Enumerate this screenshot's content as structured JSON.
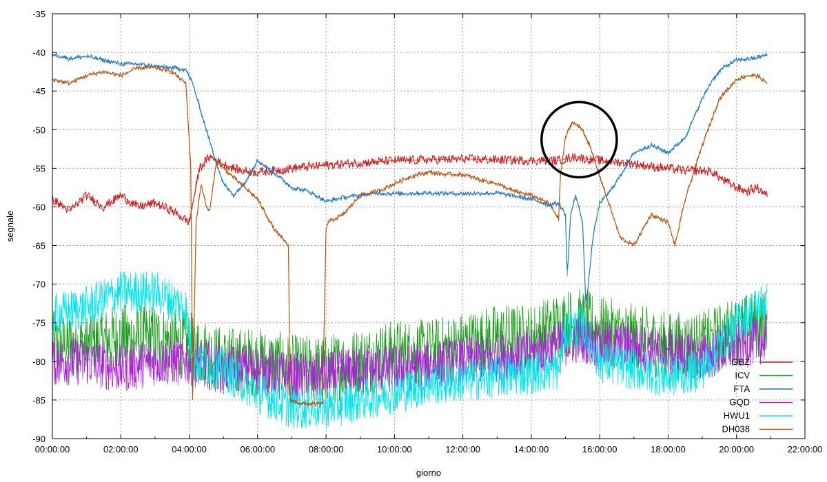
{
  "chart_data": {
    "type": "line",
    "title": "",
    "xlabel": "giorno",
    "ylabel": "segnale",
    "ylim": [
      -90,
      -35
    ],
    "xlim_hours": [
      0,
      22
    ],
    "grid": true,
    "legend_placement": "bottom-right",
    "x_tick_labels": [
      "00:00:00",
      "02:00:00",
      "04:00:00",
      "06:00:00",
      "08:00:00",
      "10:00:00",
      "12:00:00",
      "14:00:00",
      "16:00:00",
      "18:00:00",
      "20:00:00",
      "22:00:00"
    ],
    "y_tick_labels": [
      "-35",
      "-40",
      "-45",
      "-50",
      "-55",
      "-60",
      "-65",
      "-70",
      "-75",
      "-80",
      "-85",
      "-90"
    ],
    "annotation": {
      "type": "circle",
      "center_hours": 15.4,
      "center_value": -51.3,
      "radius_hours": 1.1
    },
    "series": [
      {
        "name": "GBZ",
        "color": "#cc1f1f",
        "x": [
          0,
          0.5,
          1,
          1.5,
          2,
          2.5,
          3,
          3.5,
          4,
          4.3,
          4.6,
          5,
          5.5,
          6,
          6.5,
          7,
          8,
          9,
          10,
          11,
          12,
          13,
          14,
          14.8,
          15.0,
          15.3,
          15.6,
          16,
          16.5,
          17,
          17.5,
          18,
          18.5,
          19,
          19.3,
          19.6,
          20,
          20.3,
          20.6,
          20.9
        ],
        "values": [
          -59,
          -60.5,
          -58.5,
          -60,
          -58.5,
          -60,
          -59.5,
          -60.5,
          -62,
          -55,
          -53.5,
          -54.5,
          -55.3,
          -55.5,
          -55.3,
          -55,
          -54.6,
          -54.3,
          -54,
          -53.9,
          -53.8,
          -53.9,
          -54,
          -54,
          -53.8,
          -53.5,
          -53.8,
          -54,
          -54.2,
          -54.4,
          -54.8,
          -55,
          -55.3,
          -55.3,
          -55.5,
          -56.5,
          -57.5,
          -58,
          -57.5,
          -58.5
        ]
      },
      {
        "name": "ICV",
        "color": "#1a9e1a",
        "x": [
          0,
          1,
          2,
          3,
          4,
          5,
          6,
          7,
          8,
          9,
          10,
          11,
          12,
          13,
          14,
          15,
          15.5,
          16,
          17,
          18,
          19,
          20,
          20.9
        ],
        "values": [
          -78,
          -78,
          -77,
          -77,
          -78,
          -80,
          -80,
          -81,
          -81,
          -80,
          -79,
          -79,
          -78,
          -77,
          -77,
          -75,
          -75,
          -76,
          -77,
          -78,
          -78,
          -76,
          -75
        ]
      },
      {
        "name": "FTA",
        "color": "#1f77c4",
        "x": [
          0,
          0.5,
          1,
          1.5,
          2,
          2.5,
          3,
          3.5,
          3.9,
          4.1,
          4.3,
          4.5,
          4.7,
          5,
          5.3,
          5.6,
          6,
          6.3,
          6.6,
          7,
          7.5,
          8,
          8.5,
          9,
          9.5,
          10,
          11,
          12,
          13,
          14,
          14.5,
          14.8,
          15,
          15.05,
          15.15,
          15.3,
          15.5,
          15.6,
          15.8,
          16,
          16.3,
          16.6,
          17,
          17.5,
          18,
          18.5,
          19,
          19.3,
          19.6,
          20,
          20.5,
          20.9
        ],
        "values": [
          -40.2,
          -40.8,
          -40.5,
          -41,
          -41.5,
          -41.5,
          -41.8,
          -42,
          -42.2,
          -44,
          -47,
          -50,
          -53,
          -57,
          -58.5,
          -57,
          -54,
          -55,
          -56,
          -57.5,
          -58,
          -59.3,
          -58.8,
          -58.5,
          -58.2,
          -58.3,
          -58.2,
          -58.3,
          -58.2,
          -59,
          -59.7,
          -59.5,
          -61,
          -69,
          -61,
          -58.5,
          -62,
          -73,
          -64,
          -59.5,
          -58,
          -56,
          -53,
          -52,
          -53,
          -51,
          -46,
          -43.5,
          -42,
          -41,
          -40.8,
          -40.3
        ]
      },
      {
        "name": "GQD",
        "color": "#b01fe0",
        "x": [
          0,
          1,
          2,
          3,
          4,
          5,
          6,
          7,
          8,
          9,
          10,
          11,
          12,
          13,
          14,
          15,
          15.5,
          16,
          17,
          18,
          19,
          20,
          20.9
        ],
        "values": [
          -80,
          -80,
          -81,
          -80,
          -80,
          -81,
          -81,
          -82,
          -82,
          -81,
          -81,
          -80.5,
          -80,
          -79.5,
          -79,
          -77.5,
          -77,
          -78,
          -78,
          -79,
          -79.5,
          -78,
          -77
        ]
      },
      {
        "name": "HWU1",
        "color": "#00e6e6",
        "x": [
          0,
          1,
          2,
          3,
          3.9,
          4.1,
          5,
          6,
          7,
          8,
          9,
          10,
          11,
          12,
          13,
          14,
          14.8,
          15,
          15.5,
          16,
          17,
          18,
          19,
          20,
          20.9
        ],
        "values": [
          -74,
          -73,
          -71,
          -71,
          -73,
          -80,
          -81,
          -84,
          -86,
          -86,
          -85,
          -84,
          -83,
          -82.5,
          -82,
          -81.5,
          -81,
          -76,
          -75.5,
          -80,
          -81,
          -82,
          -81,
          -75,
          -72
        ]
      },
      {
        "name": "DH038",
        "color": "#b5540f",
        "x": [
          0,
          0.5,
          1,
          1.5,
          2,
          2.5,
          3,
          3.5,
          3.9,
          4.05,
          4.1,
          4.2,
          4.35,
          4.5,
          4.6,
          4.8,
          5,
          5.5,
          6,
          6.5,
          6.9,
          6.95,
          7.3,
          7.9,
          8.0,
          8.05,
          8.5,
          9,
          9.5,
          10,
          10.5,
          11,
          11.5,
          12,
          12.5,
          13,
          13.5,
          14,
          14.5,
          14.8,
          14.85,
          15.0,
          15.2,
          15.5,
          15.7,
          16,
          16.3,
          16.6,
          17,
          17.5,
          18,
          18.2,
          18.5,
          19,
          19.5,
          20,
          20.3,
          20.6,
          20.9
        ],
        "values": [
          -43.5,
          -44,
          -43,
          -42.5,
          -43,
          -42,
          -42,
          -42.5,
          -44,
          -55,
          -85,
          -62,
          -57,
          -60,
          -60.5,
          -54,
          -55,
          -57,
          -59,
          -63,
          -65,
          -85,
          -85.5,
          -85.5,
          -63,
          -62,
          -61,
          -58.5,
          -58,
          -57,
          -56,
          -55.5,
          -55.8,
          -55.8,
          -56.5,
          -57,
          -58,
          -58.5,
          -59.5,
          -61.5,
          -56,
          -51,
          -49,
          -50,
          -52,
          -56,
          -60,
          -64,
          -65,
          -61,
          -62,
          -65,
          -59,
          -52,
          -46,
          -43.5,
          -43,
          -43,
          -44
        ]
      }
    ]
  }
}
